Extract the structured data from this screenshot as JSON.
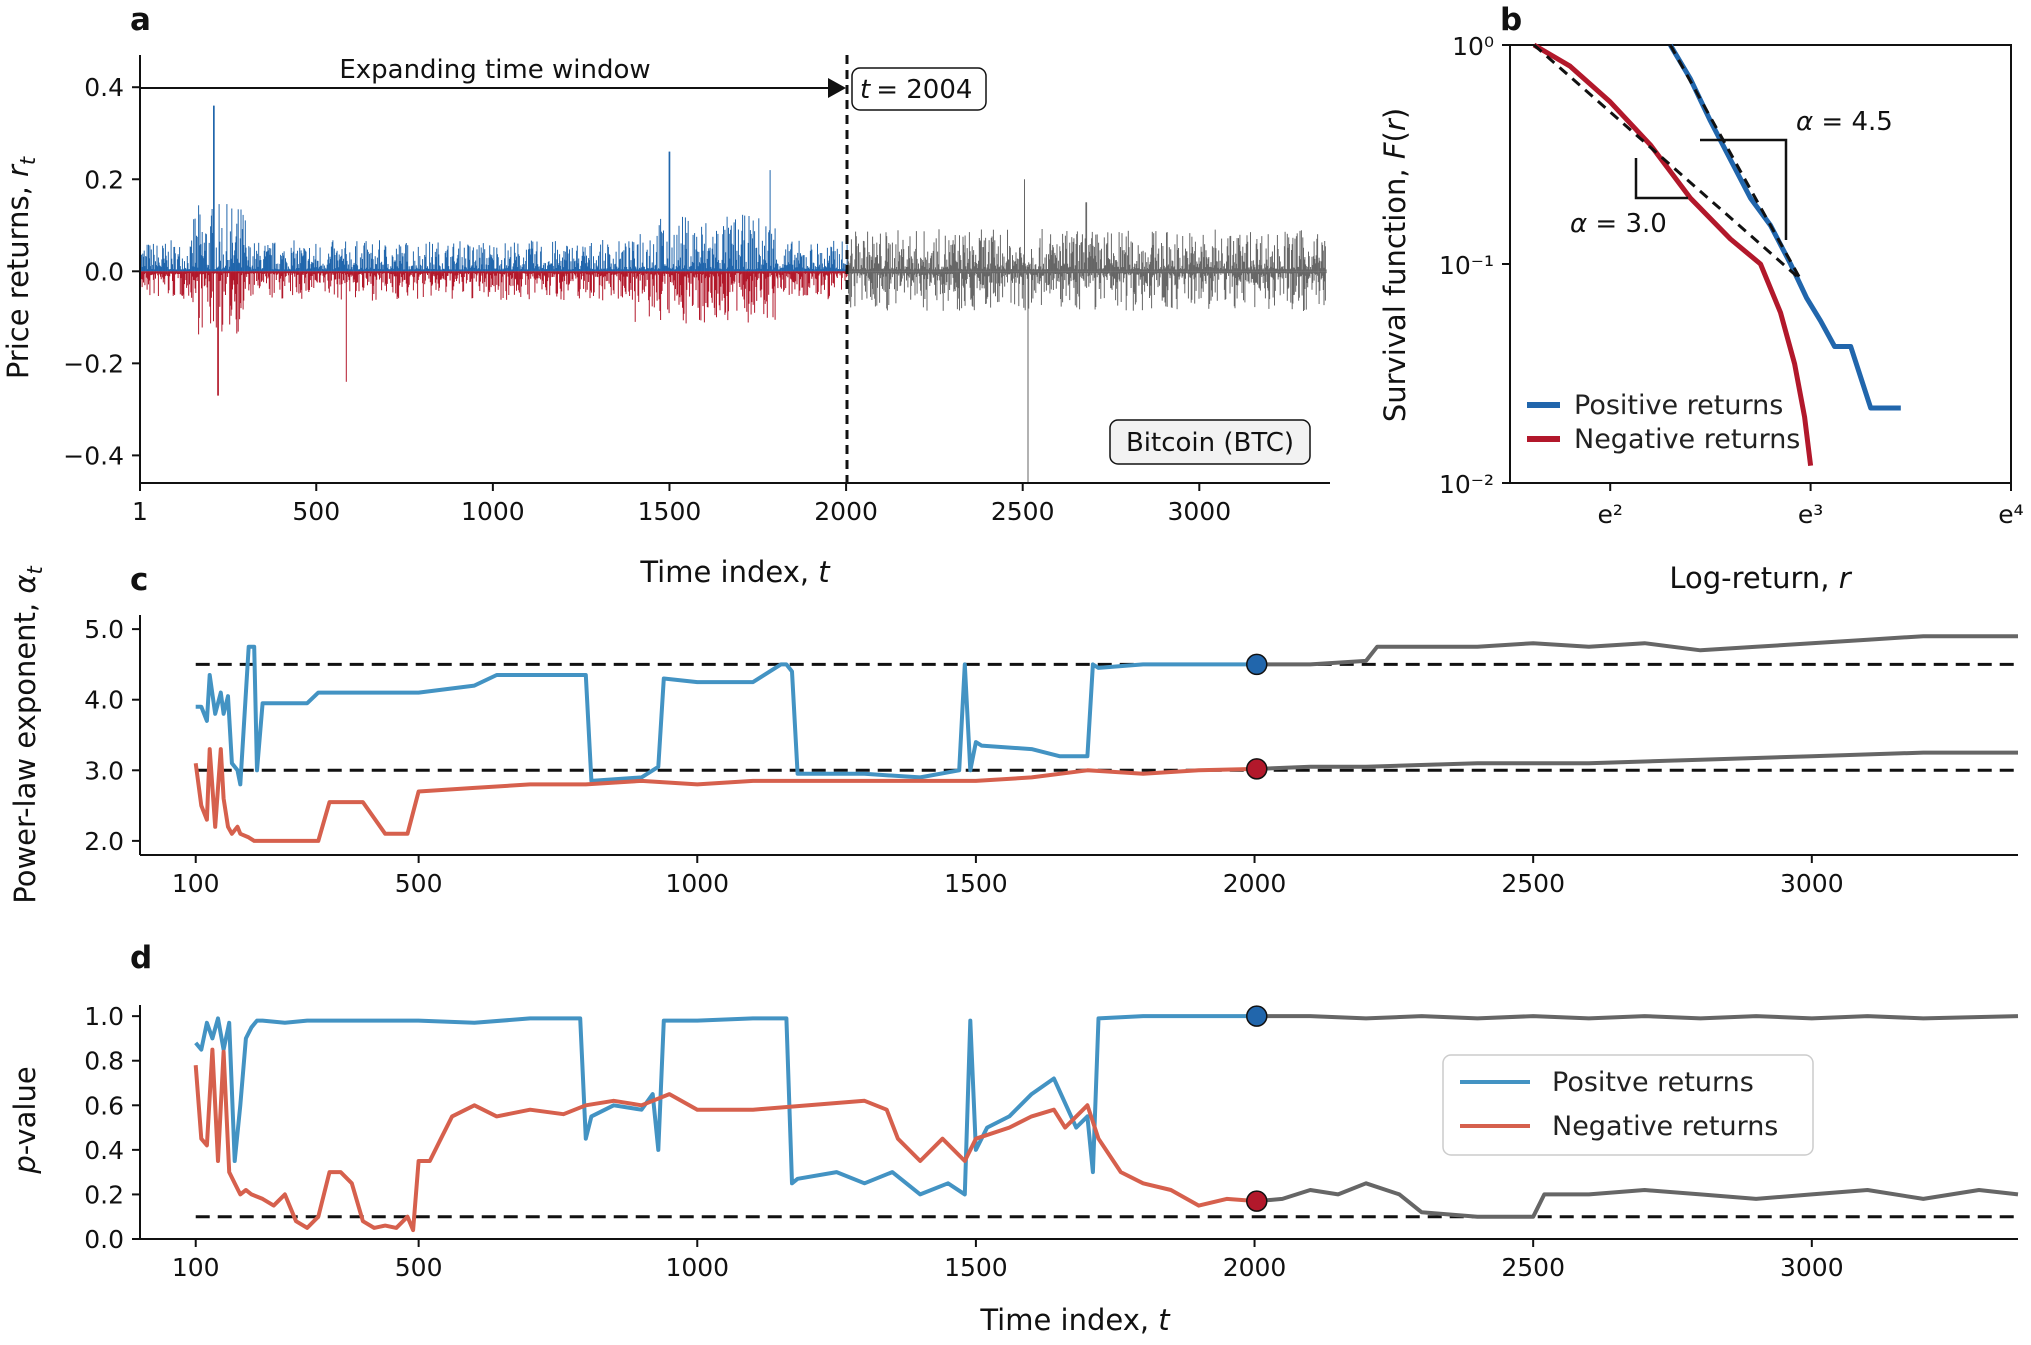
{
  "colors": {
    "blue": "#2166ac",
    "red": "#b2182b",
    "blue_light": "#4393c3",
    "red_light": "#d6604d",
    "gray": "#666666",
    "gray_light": "#808080",
    "marker_blue": "#2166ac",
    "marker_red": "#b2182b"
  },
  "panels": {
    "a": {
      "letter": "a",
      "window_label": "Expanding time window",
      "t_label": "t",
      "t_value": "= 2004",
      "asset": "Bitcoin (BTC)"
    },
    "b": {
      "letter": "b",
      "alpha_pos": "= 4.5",
      "alpha_neg": "= 3.0",
      "alpha_symbol": "α"
    },
    "c": {
      "letter": "c"
    },
    "d": {
      "letter": "d"
    }
  },
  "chart_data": [
    {
      "id": "a",
      "type": "bar",
      "xlabel": "Time index, t",
      "ylabel": "Price returns, r_t",
      "xlim": [
        1,
        3370
      ],
      "ylim": [
        -0.46,
        0.47
      ],
      "xticks": [
        1,
        500,
        1000,
        1500,
        2000,
        2500,
        3000
      ],
      "yticks": [
        -0.4,
        -0.2,
        0.0,
        0.2,
        0.4
      ],
      "ytick_labels": [
        "−0.4",
        "−0.2",
        "0.0",
        "0.2",
        "0.4"
      ],
      "split_t": 2004,
      "series": [
        {
          "color_key": "blue",
          "values_description": "positive returns up to t = 2004"
        },
        {
          "color_key": "red",
          "values_description": "negative returns up to t = 2004"
        },
        {
          "color_key": "gray",
          "values_description": "returns after t = 2004"
        }
      ],
      "peaks": [
        {
          "x": 210,
          "y": 0.36
        },
        {
          "x": 222,
          "y": -0.27
        },
        {
          "x": 585,
          "y": -0.24
        },
        {
          "x": 1500,
          "y": 0.26
        },
        {
          "x": 1785,
          "y": 0.22
        },
        {
          "x": 2515,
          "y": -0.46
        },
        {
          "x": 2505,
          "y": 0.2
        },
        {
          "x": 2680,
          "y": 0.15
        }
      ]
    },
    {
      "id": "b",
      "type": "line",
      "xlabel": "Log-return, r",
      "ylabel": "Survival function, F(r)",
      "xscale": "log",
      "yscale": "log",
      "xlim_ln": [
        1.5,
        4.0
      ],
      "ylim": [
        0.01,
        1.0
      ],
      "xtick_labels": [
        "e²",
        "e³",
        "e⁴"
      ],
      "xticks_ln": [
        2,
        3,
        4
      ],
      "ytick_labels": [
        "10⁰",
        "10⁻¹",
        "10⁻²"
      ],
      "yticks": [
        1,
        0.1,
        0.01
      ],
      "series": [
        {
          "name": "Positive returns",
          "color_key": "blue",
          "x_ln": [
            2.3,
            2.4,
            2.5,
            2.6,
            2.7,
            2.8,
            2.9,
            2.98,
            3.05,
            3.12,
            3.2,
            3.3,
            3.45
          ],
          "y": [
            1.0,
            0.7,
            0.45,
            0.3,
            0.2,
            0.15,
            0.1,
            0.07,
            0.055,
            0.042,
            0.042,
            0.022,
            0.022
          ]
        },
        {
          "name": "Negative returns",
          "color_key": "red",
          "x_ln": [
            1.62,
            1.8,
            2.0,
            2.2,
            2.4,
            2.6,
            2.75,
            2.85,
            2.92,
            2.97,
            3.0
          ],
          "y": [
            1.0,
            0.8,
            0.55,
            0.35,
            0.2,
            0.13,
            0.1,
            0.06,
            0.035,
            0.02,
            0.012
          ]
        }
      ],
      "fits": [
        {
          "alpha": 4.5,
          "x_ln": [
            2.3,
            2.95
          ],
          "y": [
            1.0,
            0.085
          ]
        },
        {
          "alpha": 3.0,
          "x_ln": [
            1.62,
            2.95
          ],
          "y": [
            1.0,
            0.085
          ]
        }
      ],
      "legend": {
        "position": "bottom-left",
        "entries": [
          "Positive returns",
          "Negative returns"
        ]
      }
    },
    {
      "id": "c",
      "type": "line",
      "xlabel": "",
      "ylabel": "Power-law exponent, α_t",
      "xlim": [
        0,
        3370
      ],
      "ylim": [
        1.8,
        5.2
      ],
      "xticks": [
        100,
        500,
        1000,
        1500,
        2000,
        2500,
        3000
      ],
      "yticks": [
        2.0,
        3.0,
        4.0,
        5.0
      ],
      "ytick_labels": [
        "2.0",
        "3.0",
        "4.0",
        "5.0"
      ],
      "hlines": [
        4.5,
        3.0
      ],
      "split_t": 2004,
      "series": [
        {
          "color_key": "blue_light",
          "after_key": "gray",
          "x": [
            100,
            110,
            120,
            125,
            135,
            145,
            150,
            158,
            165,
            175,
            180,
            195,
            205,
            210,
            220,
            300,
            320,
            420,
            500,
            600,
            640,
            800,
            810,
            900,
            930,
            940,
            1000,
            1100,
            1150,
            1160,
            1170,
            1180,
            1300,
            1400,
            1470,
            1480,
            1490,
            1500,
            1510,
            1600,
            1650,
            1700,
            1710,
            1720,
            1800,
            1900,
            2004,
            2100,
            2200,
            2220,
            2400,
            2500,
            2600,
            2700,
            2800,
            2900,
            3000,
            3100,
            3200,
            3370
          ],
          "y": [
            3.9,
            3.9,
            3.7,
            4.35,
            3.8,
            4.1,
            3.8,
            4.05,
            3.1,
            3.0,
            2.8,
            4.75,
            4.75,
            3.0,
            3.95,
            3.95,
            4.1,
            4.1,
            4.1,
            4.2,
            4.35,
            4.35,
            2.85,
            2.9,
            3.05,
            4.3,
            4.25,
            4.25,
            4.5,
            4.5,
            4.4,
            2.95,
            2.95,
            2.9,
            3.0,
            4.5,
            3.0,
            3.4,
            3.35,
            3.3,
            3.2,
            3.2,
            4.5,
            4.45,
            4.5,
            4.5,
            4.5,
            4.5,
            4.55,
            4.75,
            4.75,
            4.8,
            4.75,
            4.8,
            4.7,
            4.75,
            4.8,
            4.85,
            4.9,
            4.9
          ]
        },
        {
          "color_key": "red_light",
          "after_key": "gray",
          "x": [
            100,
            110,
            120,
            125,
            135,
            145,
            150,
            158,
            165,
            175,
            180,
            195,
            205,
            210,
            220,
            300,
            320,
            340,
            400,
            440,
            480,
            500,
            600,
            700,
            800,
            900,
            1000,
            1100,
            1200,
            1300,
            1400,
            1500,
            1600,
            1700,
            1800,
            1900,
            2004,
            2100,
            2200,
            2400,
            2600,
            2800,
            3000,
            3200,
            3370
          ],
          "y": [
            3.1,
            2.5,
            2.3,
            3.3,
            2.2,
            3.3,
            2.6,
            2.2,
            2.1,
            2.2,
            2.1,
            2.05,
            2.0,
            2.0,
            2.0,
            2.0,
            2.0,
            2.55,
            2.55,
            2.1,
            2.1,
            2.7,
            2.75,
            2.8,
            2.8,
            2.85,
            2.8,
            2.85,
            2.85,
            2.85,
            2.85,
            2.85,
            2.9,
            3.0,
            2.95,
            3.0,
            3.02,
            3.05,
            3.05,
            3.1,
            3.1,
            3.15,
            3.2,
            3.25,
            3.25
          ]
        }
      ],
      "markers": [
        {
          "x": 2004,
          "y": 4.5,
          "color_key": "marker_blue"
        },
        {
          "x": 2004,
          "y": 3.02,
          "color_key": "marker_red"
        }
      ]
    },
    {
      "id": "d",
      "type": "line",
      "xlabel": "Time index, t",
      "ylabel": "p-value",
      "xlim": [
        0,
        3370
      ],
      "ylim": [
        0.0,
        1.05
      ],
      "xticks": [
        100,
        500,
        1000,
        1500,
        2000,
        2500,
        3000
      ],
      "yticks": [
        0.0,
        0.2,
        0.4,
        0.6,
        0.8,
        1.0
      ],
      "ytick_labels": [
        "0.0",
        "0.2",
        "0.4",
        "0.6",
        "0.8",
        "1.0"
      ],
      "hlines": [
        0.1
      ],
      "split_t": 2004,
      "series": [
        {
          "name": "Positve returns",
          "color_key": "blue_light",
          "after_key": "gray",
          "x": [
            100,
            110,
            120,
            130,
            140,
            150,
            160,
            170,
            180,
            190,
            200,
            210,
            220,
            260,
            300,
            400,
            500,
            600,
            700,
            790,
            800,
            810,
            850,
            900,
            920,
            930,
            940,
            1000,
            1100,
            1160,
            1170,
            1180,
            1250,
            1300,
            1350,
            1400,
            1450,
            1480,
            1490,
            1500,
            1520,
            1560,
            1600,
            1640,
            1680,
            1700,
            1710,
            1720,
            1800,
            1900,
            2004,
            2100,
            2200,
            2300,
            2400,
            2500,
            2600,
            2700,
            2800,
            2900,
            3000,
            3100,
            3200,
            3370
          ],
          "y": [
            0.88,
            0.85,
            0.97,
            0.9,
            0.99,
            0.85,
            0.97,
            0.35,
            0.6,
            0.9,
            0.95,
            0.98,
            0.98,
            0.97,
            0.98,
            0.98,
            0.98,
            0.97,
            0.99,
            0.99,
            0.45,
            0.55,
            0.6,
            0.58,
            0.65,
            0.4,
            0.98,
            0.98,
            0.99,
            0.99,
            0.25,
            0.27,
            0.3,
            0.25,
            0.3,
            0.2,
            0.25,
            0.2,
            0.98,
            0.4,
            0.5,
            0.55,
            0.65,
            0.72,
            0.5,
            0.55,
            0.3,
            0.99,
            1.0,
            1.0,
            1.0,
            1.0,
            0.99,
            1.0,
            0.99,
            1.0,
            0.99,
            1.0,
            0.99,
            1.0,
            0.99,
            1.0,
            0.99,
            1.0
          ]
        },
        {
          "name": "Negative returns",
          "color_key": "red_light",
          "after_key": "gray",
          "x": [
            100,
            110,
            120,
            130,
            140,
            150,
            160,
            170,
            180,
            190,
            200,
            220,
            240,
            260,
            280,
            300,
            320,
            340,
            360,
            380,
            400,
            420,
            440,
            460,
            480,
            490,
            500,
            520,
            540,
            560,
            600,
            640,
            700,
            760,
            800,
            850,
            900,
            950,
            1000,
            1100,
            1200,
            1300,
            1340,
            1360,
            1400,
            1440,
            1480,
            1500,
            1560,
            1600,
            1640,
            1660,
            1700,
            1720,
            1760,
            1800,
            1850,
            1900,
            1950,
            2004,
            2050,
            2100,
            2150,
            2200,
            2260,
            2300,
            2400,
            2500,
            2520,
            2600,
            2700,
            2800,
            2900,
            3000,
            3100,
            3200,
            3300,
            3370
          ],
          "y": [
            0.78,
            0.45,
            0.42,
            0.85,
            0.35,
            0.84,
            0.3,
            0.25,
            0.2,
            0.22,
            0.2,
            0.18,
            0.15,
            0.2,
            0.08,
            0.05,
            0.1,
            0.3,
            0.3,
            0.25,
            0.08,
            0.05,
            0.06,
            0.05,
            0.1,
            0.04,
            0.35,
            0.35,
            0.45,
            0.55,
            0.6,
            0.55,
            0.58,
            0.56,
            0.6,
            0.62,
            0.6,
            0.65,
            0.58,
            0.58,
            0.6,
            0.62,
            0.58,
            0.45,
            0.35,
            0.45,
            0.35,
            0.45,
            0.5,
            0.55,
            0.58,
            0.5,
            0.6,
            0.45,
            0.3,
            0.25,
            0.22,
            0.15,
            0.18,
            0.17,
            0.18,
            0.22,
            0.2,
            0.25,
            0.2,
            0.12,
            0.1,
            0.1,
            0.2,
            0.2,
            0.22,
            0.2,
            0.18,
            0.2,
            0.22,
            0.18,
            0.22,
            0.2
          ]
        }
      ],
      "markers": [
        {
          "x": 2004,
          "y": 1.0,
          "color_key": "marker_blue"
        },
        {
          "x": 2004,
          "y": 0.17,
          "color_key": "marker_red"
        }
      ],
      "legend": {
        "position": "center-right",
        "entries": [
          "Positve returns",
          "Negative returns"
        ]
      }
    }
  ]
}
